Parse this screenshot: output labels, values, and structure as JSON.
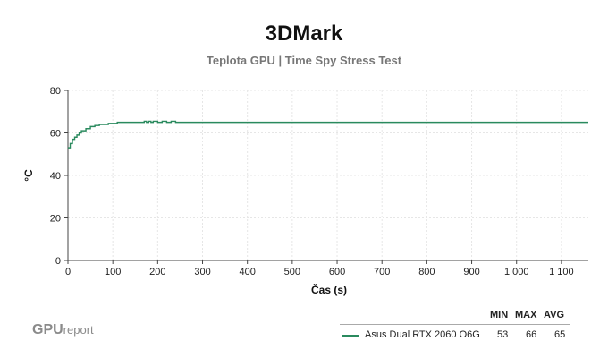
{
  "title": "3DMark",
  "subtitle": "Teplota GPU | Time Spy Stress Test",
  "logo": {
    "main": "GPU",
    "sub": "report"
  },
  "legend": {
    "headers": [
      "MIN",
      "MAX",
      "AVG"
    ],
    "series_name": "Asus Dual RTX 2060 O6G",
    "min": "53",
    "max": "66",
    "avg": "65"
  },
  "colors": {
    "series": "#2a8a5e",
    "grid": "#e6e6e6",
    "axis": "#444444"
  },
  "chart_data": {
    "type": "line",
    "xlabel": "Čas (s)",
    "ylabel": "°C",
    "xlim": [
      0,
      1160
    ],
    "ylim": [
      0,
      80
    ],
    "grid": true,
    "x_ticks": [
      0,
      100,
      200,
      300,
      400,
      500,
      600,
      700,
      800,
      900,
      1000,
      1100
    ],
    "x_tick_labels": [
      "0",
      "100",
      "200",
      "300",
      "400",
      "500",
      "600",
      "700",
      "800",
      "900",
      "1 000",
      "1 100"
    ],
    "y_ticks": [
      0,
      20,
      40,
      60,
      80
    ],
    "y_tick_labels": [
      "0",
      "20",
      "40",
      "60",
      "80"
    ],
    "series": [
      {
        "name": "Asus Dual RTX 2060 O6G",
        "x": [
          0,
          5,
          10,
          15,
          20,
          25,
          30,
          40,
          50,
          60,
          70,
          80,
          90,
          100,
          110,
          120,
          140,
          160,
          170,
          175,
          180,
          185,
          190,
          200,
          210,
          220,
          230,
          240,
          250,
          260,
          300,
          340,
          380,
          400,
          500,
          600,
          700,
          800,
          900,
          1000,
          1100,
          1160
        ],
        "y": [
          53,
          55,
          57,
          58,
          59,
          60,
          61,
          62,
          63,
          63.5,
          64,
          64,
          64.5,
          64.5,
          65,
          65,
          65,
          65,
          65.5,
          65,
          65.5,
          65,
          65.5,
          65,
          65.5,
          65,
          65.5,
          65,
          65,
          65,
          65,
          65,
          65,
          65,
          65,
          65,
          65,
          65,
          65,
          65,
          65,
          65
        ]
      }
    ]
  }
}
